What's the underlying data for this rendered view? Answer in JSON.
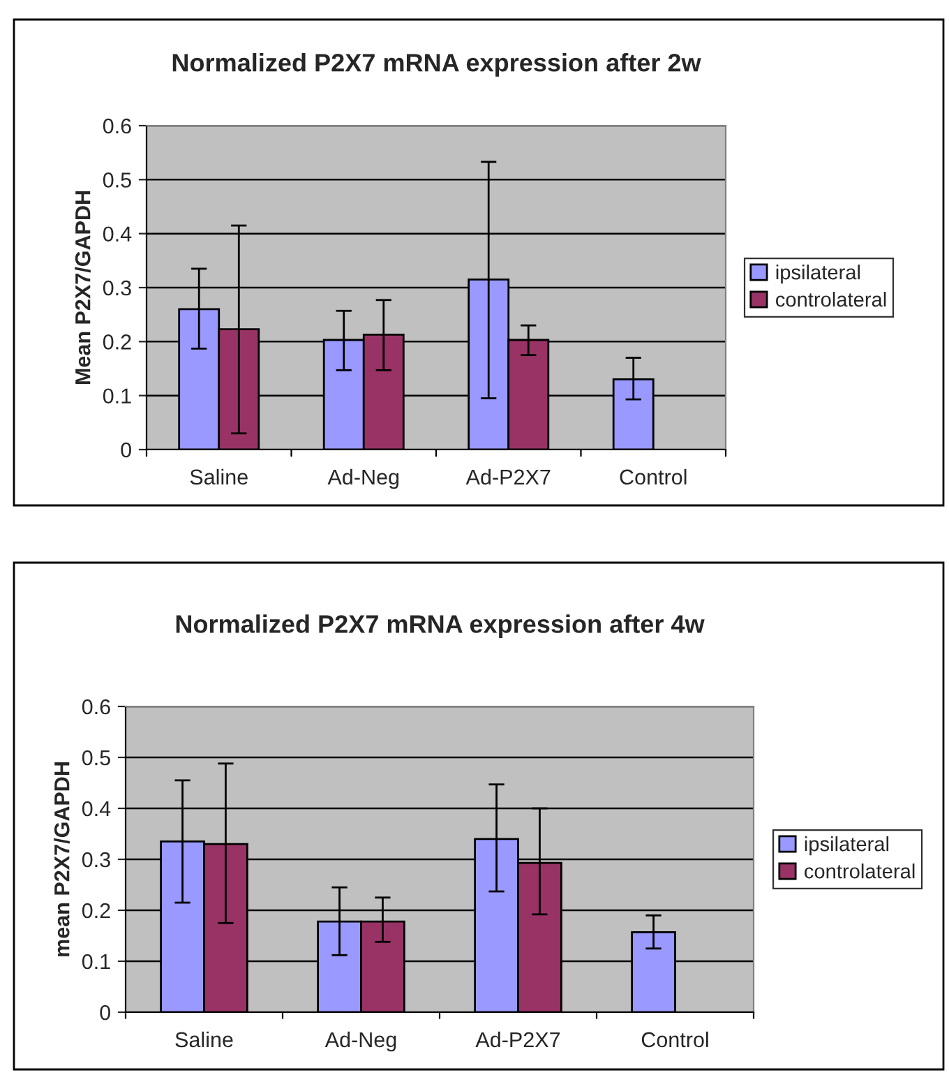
{
  "chart_data": [
    {
      "type": "bar",
      "title": "Normalized P2X7 mRNA expression after 2w",
      "ylabel": "Mean P2X7/GAPDH",
      "categories": [
        "Saline",
        "Ad-Neg",
        "Ad-P2X7",
        "Control"
      ],
      "series": [
        {
          "name": "ipsilateral",
          "color": "#9999ff",
          "values": [
            0.26,
            0.203,
            0.315,
            0.13
          ],
          "errors": [
            [
              0.187,
              0.335
            ],
            [
              0.147,
              0.257
            ],
            [
              0.095,
              0.533
            ],
            [
              0.093,
              0.17
            ]
          ]
        },
        {
          "name": "controlateral",
          "color": "#993366",
          "values": [
            0.223,
            0.213,
            0.203,
            null
          ],
          "errors": [
            [
              0.03,
              0.415
            ],
            [
              0.147,
              0.277
            ],
            [
              0.175,
              0.23
            ],
            null
          ]
        }
      ],
      "ylim": [
        0,
        0.6
      ],
      "yticks": [
        {
          "value": 0,
          "label": "0"
        },
        0.1,
        0.2,
        0.3,
        0.4,
        0.5,
        0.6
      ],
      "grid": "y",
      "legend": "right"
    },
    {
      "type": "bar",
      "title": "Normalized P2X7 mRNA expression after 4w",
      "ylabel": "mean P2X7/GAPDH",
      "categories": [
        "Saline",
        "Ad-Neg",
        "Ad-P2X7",
        "Control"
      ],
      "series": [
        {
          "name": "ipsilateral",
          "color": "#9999ff",
          "values": [
            0.335,
            0.178,
            0.34,
            0.157
          ],
          "errors": [
            [
              0.215,
              0.455
            ],
            [
              0.112,
              0.245
            ],
            [
              0.237,
              0.447
            ],
            [
              0.125,
              0.19
            ]
          ]
        },
        {
          "name": "controlateral",
          "color": "#993366",
          "values": [
            0.33,
            0.178,
            0.293,
            null
          ],
          "errors": [
            [
              0.175,
              0.488
            ],
            [
              0.138,
              0.225
            ],
            [
              0.192,
              0.4
            ],
            null
          ]
        }
      ],
      "ylim": [
        0,
        0.6
      ],
      "yticks": [
        {
          "value": 0,
          "label": "0"
        },
        0.1,
        0.2,
        0.3,
        0.4,
        0.5,
        0.6
      ],
      "grid": "y",
      "legend": "right"
    }
  ]
}
